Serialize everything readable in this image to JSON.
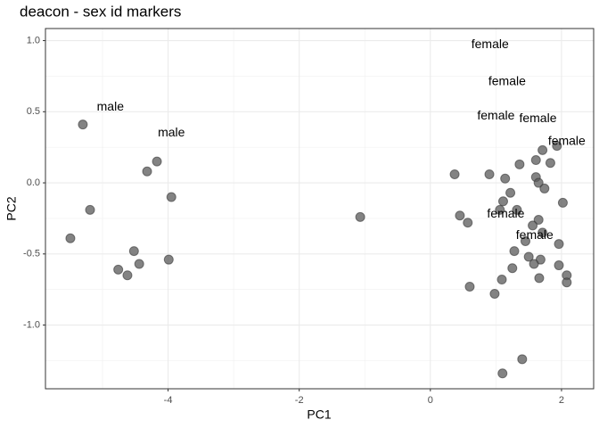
{
  "chart_data": {
    "type": "scatter",
    "title": "deacon - sex id markers",
    "x_label": "PC1",
    "y_label": "PC2",
    "xlim": [
      -5.87,
      2.49
    ],
    "ylim": [
      -1.448,
      1.085
    ],
    "xticks": [
      -4,
      -2,
      0,
      2
    ],
    "yticks": [
      {
        "value": 1.0,
        "label": "1.0"
      },
      0.5,
      {
        "value": 0.0,
        "label": "0.0"
      },
      -0.5,
      {
        "value": -1.0,
        "label": "-1.0"
      }
    ],
    "grid": true,
    "color": "#595959",
    "x": [
      -5.3,
      -5.19,
      -5.49,
      -4.32,
      -4.17,
      -3.95,
      -4.52,
      -4.44,
      -4.76,
      -4.62,
      -3.99,
      -1.07,
      0.45,
      0.57,
      0.6,
      0.37,
      0.9,
      1.14,
      1.36,
      1.61,
      1.71,
      1.83,
      1.93,
      1.61,
      1.65,
      1.74,
      1.22,
      1.11,
      1.06,
      1.32,
      2.02,
      1.65,
      1.56,
      1.71,
      1.45,
      1.96,
      1.28,
      1.5,
      1.68,
      1.58,
      1.96,
      1.25,
      2.08,
      2.08,
      1.66,
      1.09,
      0.98,
      1.4,
      1.1
    ],
    "y": [
      0.41,
      -0.19,
      -0.39,
      0.08,
      0.15,
      -0.1,
      -0.48,
      -0.57,
      -0.61,
      -0.65,
      -0.54,
      -0.24,
      -0.23,
      -0.28,
      -0.73,
      0.06,
      0.06,
      0.03,
      0.13,
      0.16,
      0.23,
      0.14,
      0.26,
      0.04,
      0.0,
      -0.04,
      -0.07,
      -0.13,
      -0.19,
      -0.19,
      -0.14,
      -0.26,
      -0.3,
      -0.35,
      -0.41,
      -0.43,
      -0.48,
      -0.52,
      -0.54,
      -0.57,
      -0.58,
      -0.6,
      -0.65,
      -0.7,
      -0.67,
      -0.68,
      -0.78,
      -1.24,
      -1.34
    ],
    "annotations": [
      {
        "text": "male",
        "x": -4.88,
        "y": 0.53
      },
      {
        "text": "male",
        "x": -3.95,
        "y": 0.35
      },
      {
        "text": "female",
        "x": 0.91,
        "y": 0.97
      },
      {
        "text": "female",
        "x": 1.17,
        "y": 0.71
      },
      {
        "text": "female",
        "x": 1.0,
        "y": 0.47
      },
      {
        "text": "female",
        "x": 1.64,
        "y": 0.45
      },
      {
        "text": "female",
        "x": 2.08,
        "y": 0.29
      },
      {
        "text": "female",
        "x": 1.15,
        "y": -0.22
      },
      {
        "text": "female",
        "x": 1.59,
        "y": -0.37
      }
    ]
  }
}
